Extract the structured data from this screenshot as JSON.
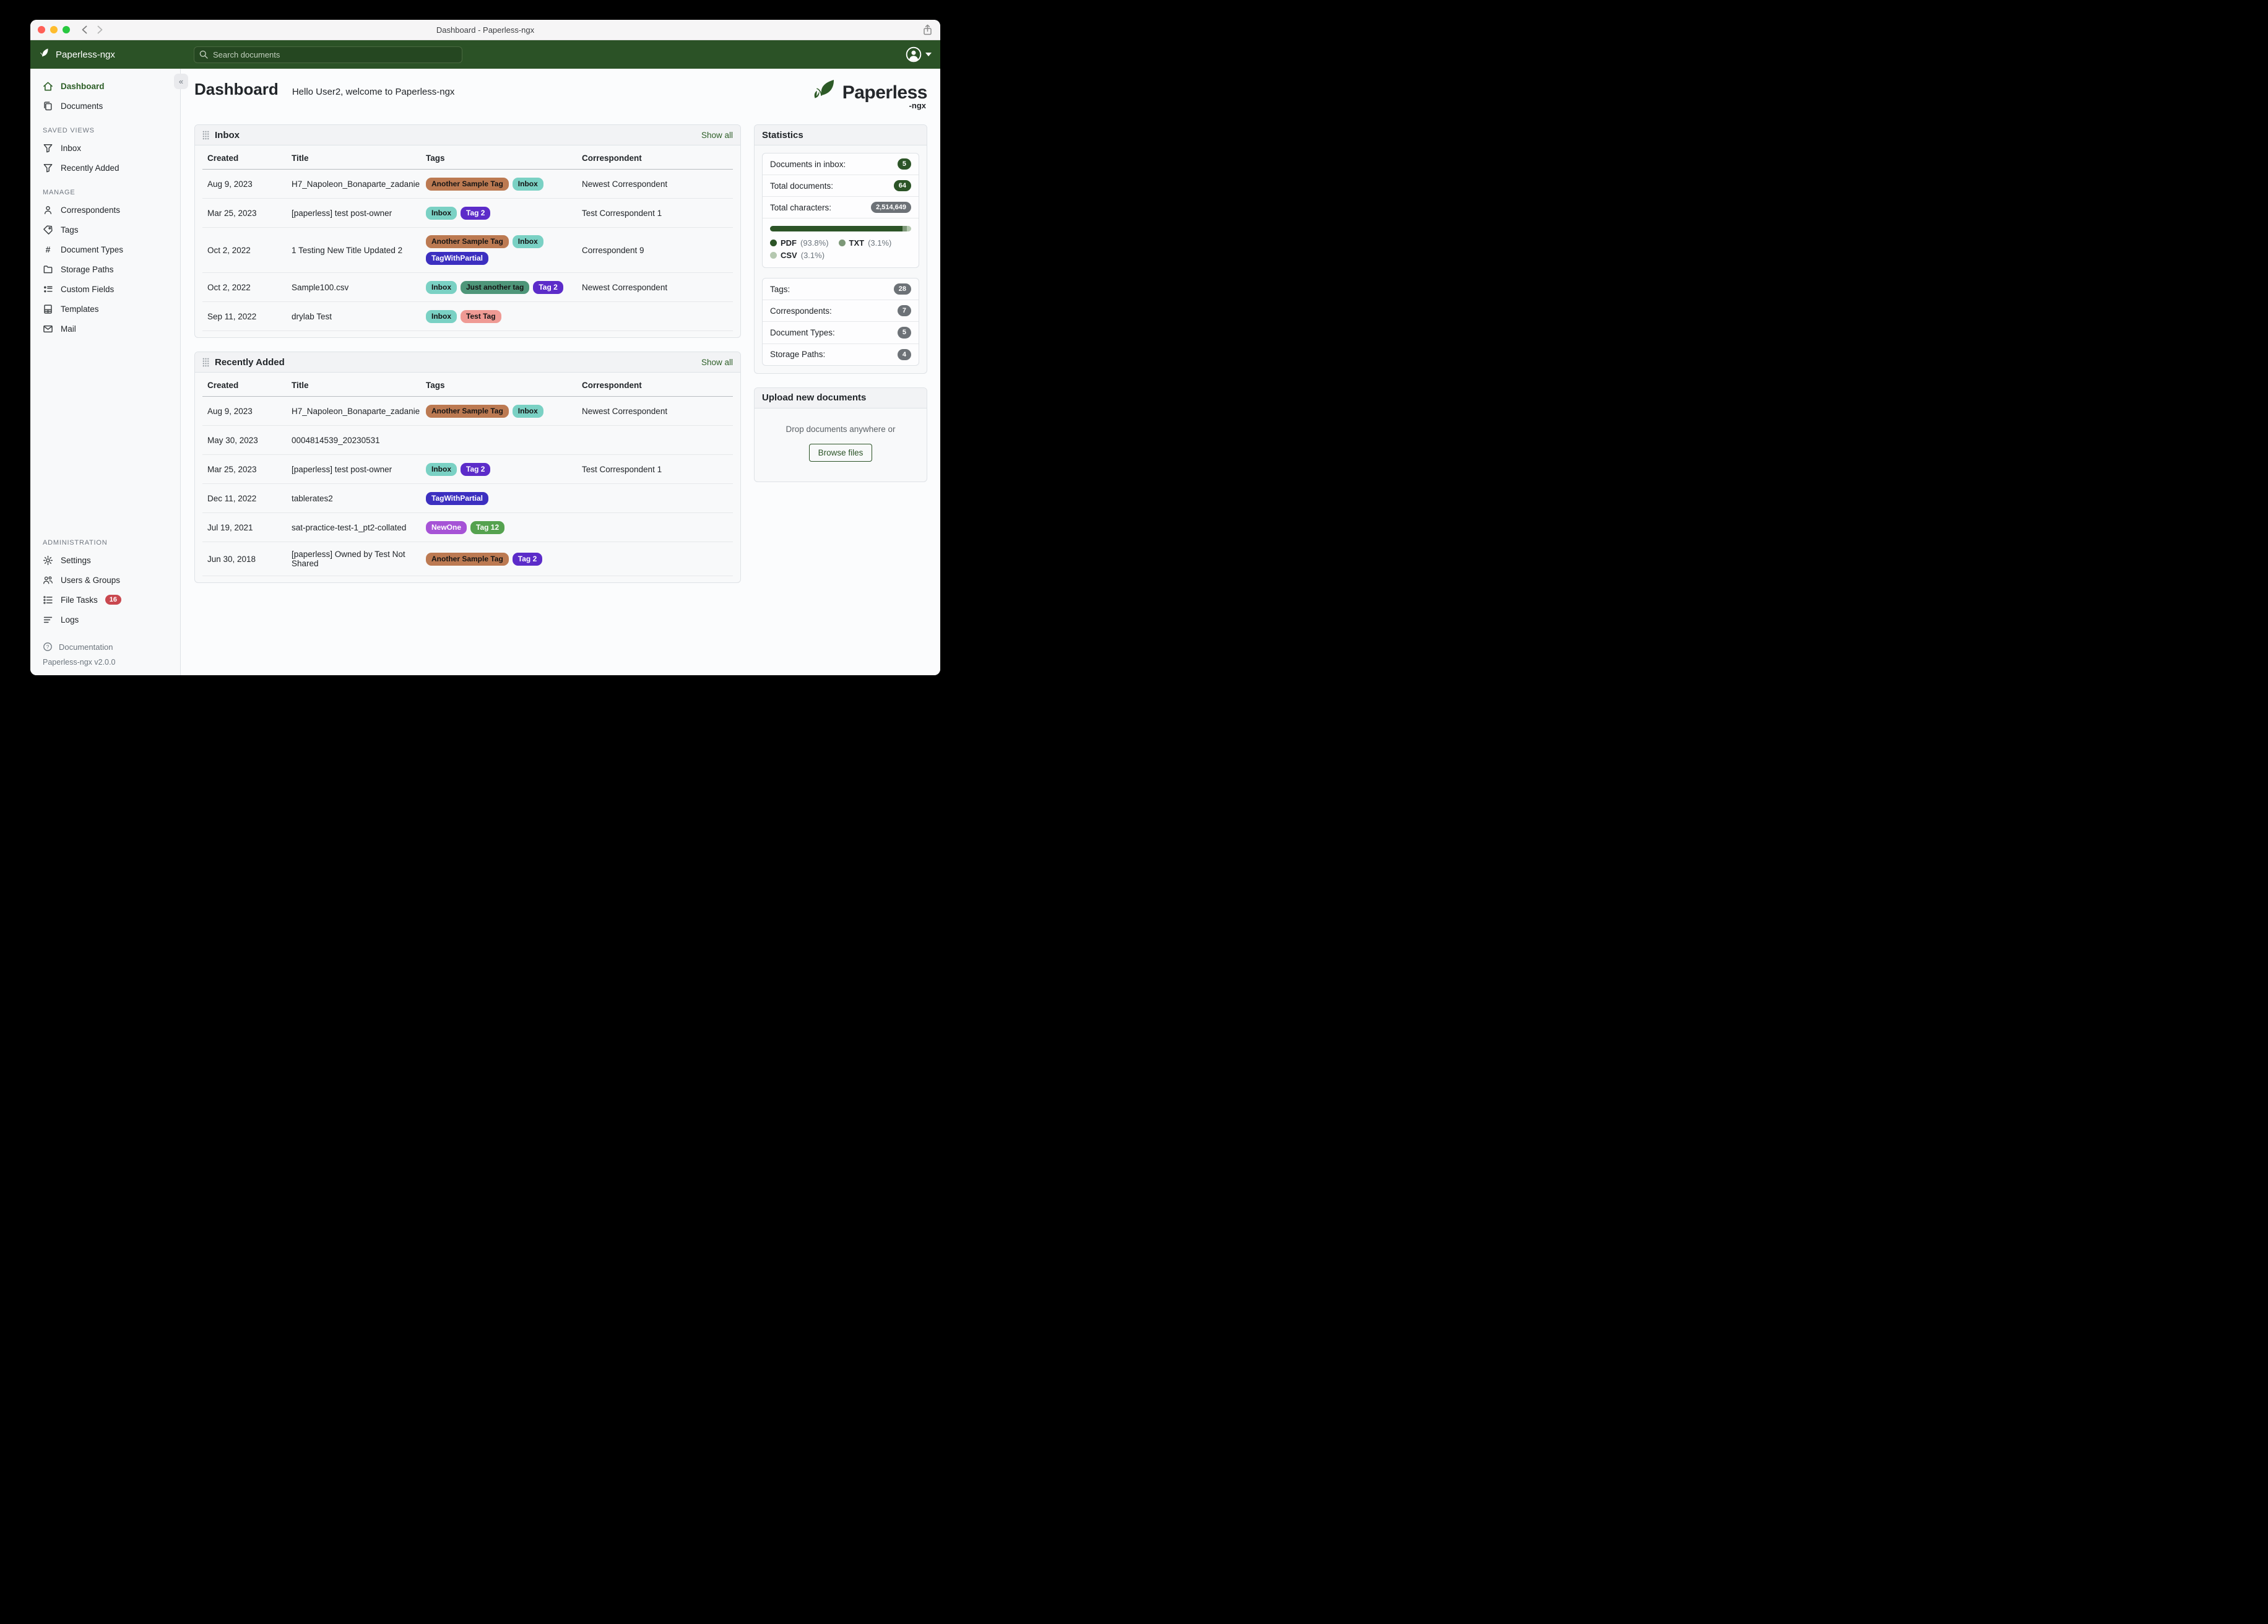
{
  "window": {
    "title": "Dashboard - Paperless-ngx"
  },
  "appbar": {
    "brand": "Paperless-ngx",
    "search_placeholder": "Search documents",
    "icons": {
      "brand": "leaf-icon",
      "search": "search-icon",
      "user": "user-avatar-icon",
      "caret": "caret-down-icon"
    }
  },
  "sidebar": {
    "primary": [
      {
        "label": "Dashboard"
      },
      {
        "label": "Documents"
      }
    ],
    "sections": {
      "saved_views": "SAVED VIEWS",
      "manage": "MANAGE",
      "administration": "ADMINISTRATION"
    },
    "saved_views": [
      {
        "label": "Inbox"
      },
      {
        "label": "Recently Added"
      }
    ],
    "manage": [
      {
        "label": "Correspondents"
      },
      {
        "label": "Tags"
      },
      {
        "label": "Document Types"
      },
      {
        "label": "Storage Paths"
      },
      {
        "label": "Custom Fields"
      },
      {
        "label": "Templates"
      },
      {
        "label": "Mail"
      }
    ],
    "administration": [
      {
        "label": "Settings"
      },
      {
        "label": "Users & Groups"
      },
      {
        "label": "File Tasks",
        "badge": "16"
      },
      {
        "label": "Logs"
      }
    ],
    "footer": {
      "documentation": "Documentation",
      "version": "Paperless-ngx v2.0.0"
    },
    "collapse_glyph": "«"
  },
  "main": {
    "title": "Dashboard",
    "greeting": "Hello User2, welcome to Paperless-ngx",
    "logo_word": "Paperless",
    "logo_sub": "-ngx"
  },
  "inbox": {
    "title": "Inbox",
    "show_all": "Show all",
    "columns": {
      "created": "Created",
      "title": "Title",
      "tags": "Tags",
      "correspondent": "Correspondent"
    },
    "rows": [
      {
        "created": "Aug 9, 2023",
        "title": "H7_Napoleon_Bonaparte_zadanie",
        "tags": [
          {
            "label": "Another Sample Tag",
            "bg": "#bc7a52",
            "fg": "#141414"
          },
          {
            "label": "Inbox",
            "bg": "#7ad1c4",
            "fg": "#141414"
          }
        ],
        "correspondent": "Newest Correspondent"
      },
      {
        "created": "Mar 25, 2023",
        "title": "[paperless] test post-owner",
        "tags": [
          {
            "label": "Inbox",
            "bg": "#7ad1c4",
            "fg": "#141414"
          },
          {
            "label": "Tag 2",
            "bg": "#5c2cc9",
            "fg": "#ffffff"
          }
        ],
        "correspondent": "Test Correspondent 1"
      },
      {
        "created": "Oct 2, 2022",
        "title": "1 Testing New Title Updated 2",
        "tags": [
          {
            "label": "Another Sample Tag",
            "bg": "#bc7a52",
            "fg": "#141414"
          },
          {
            "label": "Inbox",
            "bg": "#7ad1c4",
            "fg": "#141414"
          },
          {
            "label": "TagWithPartial",
            "bg": "#3c2fc0",
            "fg": "#ffffff"
          }
        ],
        "correspondent": "Correspondent 9"
      },
      {
        "created": "Oct 2, 2022",
        "title": "Sample100.csv",
        "tags": [
          {
            "label": "Inbox",
            "bg": "#7ad1c4",
            "fg": "#141414"
          },
          {
            "label": "Just another tag",
            "bg": "#4e9679",
            "fg": "#141414"
          },
          {
            "label": "Tag 2",
            "bg": "#5c2cc9",
            "fg": "#ffffff"
          }
        ],
        "correspondent": "Newest Correspondent"
      },
      {
        "created": "Sep 11, 2022",
        "title": "drylab Test",
        "tags": [
          {
            "label": "Inbox",
            "bg": "#7ad1c4",
            "fg": "#141414"
          },
          {
            "label": "Test Tag",
            "bg": "#ef9a94",
            "fg": "#141414"
          }
        ],
        "correspondent": ""
      }
    ]
  },
  "recent": {
    "title": "Recently Added",
    "show_all": "Show all",
    "columns": {
      "created": "Created",
      "title": "Title",
      "tags": "Tags",
      "correspondent": "Correspondent"
    },
    "rows": [
      {
        "created": "Aug 9, 2023",
        "title": "H7_Napoleon_Bonaparte_zadanie",
        "tags": [
          {
            "label": "Another Sample Tag",
            "bg": "#bc7a52",
            "fg": "#141414"
          },
          {
            "label": "Inbox",
            "bg": "#7ad1c4",
            "fg": "#141414"
          }
        ],
        "correspondent": "Newest Correspondent"
      },
      {
        "created": "May 30, 2023",
        "title": "0004814539_20230531",
        "tags": [],
        "correspondent": ""
      },
      {
        "created": "Mar 25, 2023",
        "title": "[paperless] test post-owner",
        "tags": [
          {
            "label": "Inbox",
            "bg": "#7ad1c4",
            "fg": "#141414"
          },
          {
            "label": "Tag 2",
            "bg": "#5c2cc9",
            "fg": "#ffffff"
          }
        ],
        "correspondent": "Test Correspondent 1"
      },
      {
        "created": "Dec 11, 2022",
        "title": "tablerates2",
        "tags": [
          {
            "label": "TagWithPartial",
            "bg": "#3c2fc0",
            "fg": "#ffffff"
          }
        ],
        "correspondent": ""
      },
      {
        "created": "Jul 19, 2021",
        "title": "sat-practice-test-1_pt2-collated",
        "tags": [
          {
            "label": "NewOne",
            "bg": "#a653d6",
            "fg": "#ffffff"
          },
          {
            "label": "Tag 12",
            "bg": "#55a24f",
            "fg": "#ffffff"
          }
        ],
        "correspondent": ""
      },
      {
        "created": "Jun 30, 2018",
        "title": "[paperless] Owned by Test Not Shared",
        "tags": [
          {
            "label": "Another Sample Tag",
            "bg": "#bc7a52",
            "fg": "#141414"
          },
          {
            "label": "Tag 2",
            "bg": "#5c2cc9",
            "fg": "#ffffff"
          }
        ],
        "correspondent": ""
      }
    ]
  },
  "stats": {
    "title": "Statistics",
    "rows1": [
      {
        "label": "Documents in inbox:",
        "value": "5",
        "variant": "green"
      },
      {
        "label": "Total documents:",
        "value": "64",
        "variant": "green"
      },
      {
        "label": "Total characters:",
        "value": "2,514,649",
        "variant": "gray"
      }
    ],
    "bar_segments": [
      {
        "pct": 93.8,
        "color": "#2c5427"
      },
      {
        "pct": 3.1,
        "color": "#7d9878"
      },
      {
        "pct": 3.1,
        "color": "#b5c8b0"
      }
    ],
    "legend": [
      {
        "name": "PDF",
        "pct_label": "(93.8%)",
        "color": "#2c5427"
      },
      {
        "name": "TXT",
        "pct_label": "(3.1%)",
        "color": "#7d9878"
      },
      {
        "name": "CSV",
        "pct_label": "(3.1%)",
        "color": "#b5c8b0"
      }
    ],
    "rows2": [
      {
        "label": "Tags:",
        "value": "28",
        "variant": "gray"
      },
      {
        "label": "Correspondents:",
        "value": "7",
        "variant": "gray"
      },
      {
        "label": "Document Types:",
        "value": "5",
        "variant": "gray"
      },
      {
        "label": "Storage Paths:",
        "value": "4",
        "variant": "gray"
      }
    ]
  },
  "upload": {
    "title": "Upload new documents",
    "hint": "Drop documents anywhere or",
    "button": "Browse files"
  },
  "chart_data": {
    "type": "bar",
    "title": "Document file type distribution",
    "categories": [
      "PDF",
      "TXT",
      "CSV"
    ],
    "values": [
      93.8,
      3.1,
      3.1
    ],
    "colors": [
      "#2c5427",
      "#7d9878",
      "#b5c8b0"
    ],
    "unit": "%"
  },
  "colors": {
    "header_green": "#2b5226",
    "accent_green": "#2c5427",
    "link_green": "#2d5e27",
    "badge_gray": "#6d7277",
    "file_tasks_red": "#c9484f"
  }
}
